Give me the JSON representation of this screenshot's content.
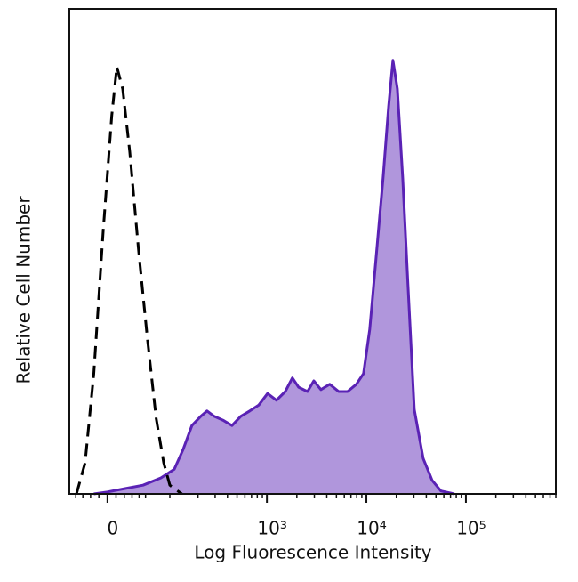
{
  "chart_data": {
    "type": "area",
    "xlabel": "Log Fluorescence Intensity",
    "ylabel": "Relative Cell Number",
    "xscale": "biexponential",
    "xlim": [
      -50,
      800000
    ],
    "ylim": [
      0,
      100
    ],
    "xticks": [
      0,
      {
        "value": 1000,
        "label": "10³"
      },
      {
        "value": 10000,
        "label": "10⁴"
      },
      {
        "value": 100000,
        "label": "10⁵"
      }
    ],
    "xminorticks": [
      -40,
      -30,
      -20,
      -10,
      10,
      20,
      30,
      40,
      50,
      100,
      200,
      300,
      400,
      500,
      600,
      700,
      800,
      900,
      2000,
      3000,
      4000,
      5000,
      6000,
      7000,
      8000,
      9000,
      20000,
      30000,
      40000,
      50000,
      60000,
      70000,
      80000,
      90000,
      200000,
      300000,
      400000,
      500000,
      600000,
      700000,
      800000
    ],
    "series": [
      {
        "color": "#5a22b5",
        "fill": "#b096dc",
        "style": "solid",
        "x": [
          -16,
          0,
          21,
          46,
          79,
          112,
          140,
          173,
          214,
          248,
          293,
          361,
          445,
          546,
          672,
          826,
          1015,
          1247,
          1530,
          1805,
          2085,
          2560,
          2960,
          3490,
          4285,
          5265,
          6470,
          7940,
          9365,
          10800,
          12500,
          14700,
          16700,
          18500,
          20500,
          23200,
          26200,
          30300,
          37200,
          45700,
          56100,
          76400
        ],
        "values": [
          0,
          0.4,
          1.1,
          1.8,
          3.3,
          5.1,
          9.2,
          14.1,
          16,
          17.1,
          16,
          15.2,
          14.1,
          16,
          17.1,
          18.3,
          20.7,
          19.3,
          21.1,
          23.9,
          22,
          21.1,
          23.3,
          21.5,
          22.6,
          21.1,
          21.1,
          22.6,
          24.8,
          33.9,
          48.6,
          65.1,
          79.8,
          89.4,
          83.5,
          65.1,
          43.1,
          17.4,
          7.3,
          2.8,
          0.6,
          0
        ]
      },
      {
        "color": "#000000",
        "style": "dashed",
        "x": [
          -39,
          -27,
          -16,
          -5,
          5,
          11,
          18,
          27,
          39,
          53,
          69,
          85,
          100,
          135
        ],
        "values": [
          0,
          6.4,
          24.8,
          54.1,
          78,
          88.1,
          83.5,
          70.6,
          50.5,
          32.1,
          15.6,
          6.4,
          1.8,
          0
        ]
      }
    ]
  }
}
